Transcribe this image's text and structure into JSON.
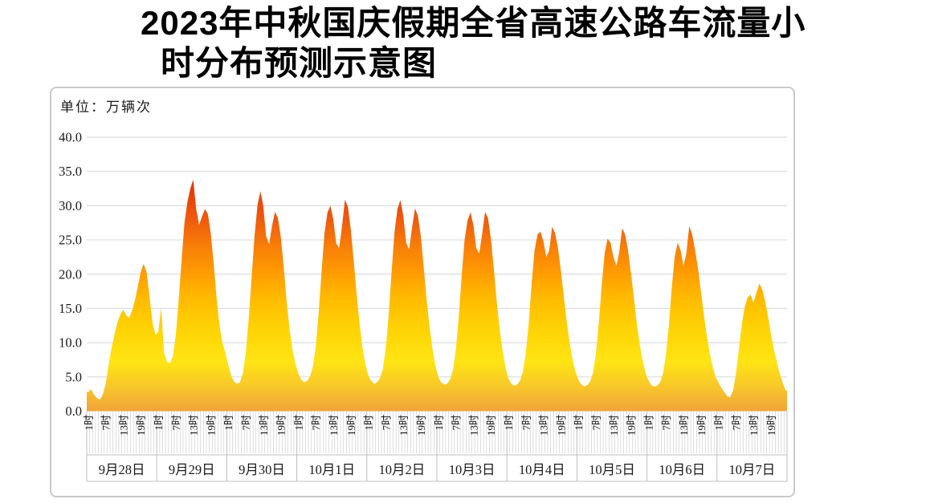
{
  "title": {
    "line1": "2023年中秋国庆假期全省高速公路车流量小",
    "line2": "时分布预测示意图"
  },
  "chart_data": {
    "type": "area",
    "title": "2023年中秋国庆假期全省高速公路车流量小时分布预测示意图",
    "unit_label": "单位：万辆次",
    "ylabel": "万辆次",
    "ylim": [
      0,
      40
    ],
    "grid": true,
    "legend": false,
    "y_tick_values": [
      40,
      35,
      30,
      25,
      20,
      15,
      10,
      5,
      0
    ],
    "y_tick_labels": [
      "40.0",
      "35.0",
      "30.0",
      "25.0",
      "20.0",
      "15.0",
      "10.0",
      "5.0",
      "0.0"
    ],
    "dates": [
      "9月28日",
      "9月29日",
      "9月30日",
      "10月1日",
      "10月2日",
      "10月3日",
      "10月4日",
      "10月5日",
      "10月6日",
      "10月7日"
    ],
    "hours_per_day": 24,
    "hour_tick_hours": [
      1,
      7,
      13,
      19
    ],
    "hour_tick_labels": [
      "1时",
      "7时",
      "13时",
      "19时"
    ],
    "values_by_day": [
      [
        2.8,
        3.2,
        2.4,
        1.9,
        1.7,
        2.4,
        4.0,
        6.8,
        9.2,
        11.2,
        12.9,
        14.1,
        14.8,
        14.0,
        13.6,
        14.6,
        16.2,
        18.2,
        20.3,
        21.5,
        20.3,
        16.8,
        13.0,
        11.2
      ],
      [
        11.5,
        15.0,
        8.5,
        7.2,
        7.0,
        8.0,
        11.0,
        16.0,
        22.0,
        27.5,
        30.5,
        32.5,
        33.8,
        29.5,
        27.2,
        28.4,
        29.5,
        28.8,
        26.0,
        21.5,
        16.5,
        12.5,
        10.0,
        8.5
      ],
      [
        6.8,
        5.2,
        4.3,
        4.0,
        4.2,
        5.5,
        8.5,
        13.5,
        19.5,
        25.5,
        30.0,
        32.1,
        30.0,
        25.5,
        24.4,
        27.0,
        29.1,
        28.2,
        25.5,
        21.0,
        16.0,
        12.0,
        9.0,
        7.0
      ],
      [
        5.5,
        4.6,
        4.2,
        4.4,
        5.0,
        6.5,
        9.5,
        14.5,
        20.5,
        26.0,
        29.0,
        30.0,
        28.0,
        24.5,
        23.8,
        27.0,
        30.9,
        29.8,
        26.5,
        22.0,
        17.0,
        12.8,
        9.2,
        6.8
      ],
      [
        5.2,
        4.4,
        4.0,
        4.2,
        4.8,
        6.2,
        9.2,
        14.2,
        20.5,
        26.2,
        29.5,
        30.8,
        28.5,
        24.5,
        23.6,
        26.8,
        29.6,
        28.5,
        25.5,
        21.0,
        16.2,
        12.2,
        9.0,
        6.6
      ],
      [
        5.0,
        4.2,
        3.9,
        4.0,
        4.6,
        6.0,
        9.0,
        13.8,
        19.8,
        25.0,
        27.8,
        29.0,
        27.2,
        23.8,
        23.0,
        25.8,
        29.1,
        28.2,
        25.2,
        20.8,
        16.0,
        12.0,
        8.8,
        6.4
      ],
      [
        4.8,
        4.0,
        3.7,
        3.9,
        4.4,
        5.8,
        8.6,
        13.0,
        18.8,
        23.5,
        25.8,
        26.2,
        24.8,
        22.5,
        23.5,
        26.9,
        26.0,
        23.8,
        20.5,
        16.8,
        13.0,
        10.0,
        7.5,
        5.8
      ],
      [
        4.6,
        3.9,
        3.6,
        3.8,
        4.3,
        5.6,
        8.4,
        12.8,
        18.4,
        23.0,
        25.2,
        24.6,
        22.5,
        21.2,
        23.2,
        26.7,
        25.8,
        23.5,
        20.2,
        16.5,
        12.8,
        9.8,
        7.4,
        5.6
      ],
      [
        4.5,
        3.8,
        3.6,
        3.7,
        4.2,
        5.5,
        8.2,
        12.5,
        18.0,
        22.5,
        24.6,
        23.5,
        21.2,
        23.0,
        27.0,
        25.8,
        23.5,
        20.8,
        17.5,
        14.0,
        11.0,
        8.5,
        6.5,
        5.0
      ],
      [
        4.2,
        3.4,
        2.8,
        2.2,
        2.0,
        3.0,
        5.5,
        9.0,
        12.6,
        15.2,
        16.6,
        17.0,
        15.8,
        17.3,
        18.6,
        17.8,
        16.0,
        13.8,
        11.2,
        9.0,
        7.2,
        5.5,
        4.2,
        3.0
      ]
    ],
    "colors": {
      "gradient_stops": [
        [
          0.0,
          "#F1A33B"
        ],
        [
          0.09,
          "#F8C72A"
        ],
        [
          0.18,
          "#FFE414"
        ],
        [
          0.3,
          "#FFD305"
        ],
        [
          0.42,
          "#FFB800"
        ],
        [
          0.5,
          "#FF9D02"
        ],
        [
          0.6,
          "#F87F08"
        ],
        [
          0.7,
          "#EF5A0E"
        ],
        [
          0.8,
          "#E73D0A"
        ],
        [
          0.9,
          "#E02F08"
        ],
        [
          1.0,
          "#DC2B07"
        ]
      ],
      "gridline": "#dcdcdc",
      "tick": "#c8c8c8",
      "separator": "#bfbfbf",
      "text": "#1a1a1a",
      "box_border": "#c9c9c9"
    }
  }
}
